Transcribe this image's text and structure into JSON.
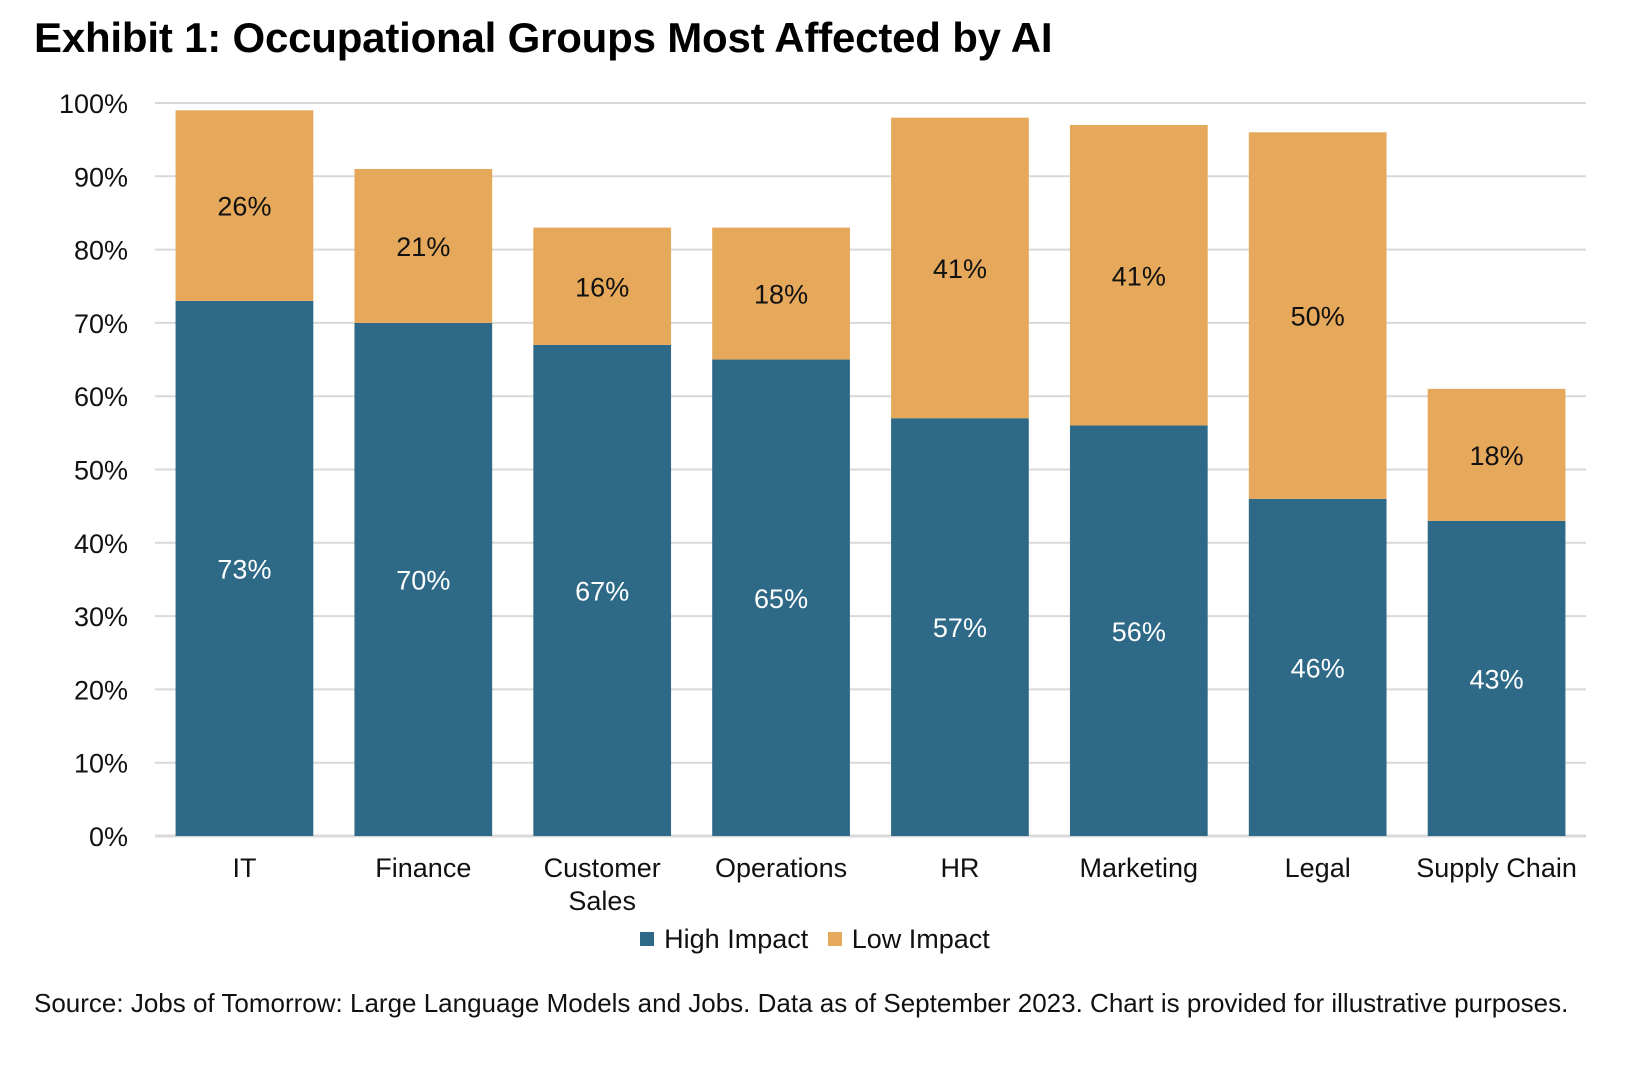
{
  "title": "Exhibit 1: Occupational Groups Most Affected by AI",
  "colors": {
    "high": "#2E6A87",
    "low": "#E6A85A",
    "grid": "#D9D9D9"
  },
  "legend": {
    "high_label": "High Impact",
    "low_label": "Low Impact"
  },
  "source": "Source: Jobs of Tomorrow: Large Language Models and Jobs. Data as of September 2023. Chart is provided for illustrative purposes.",
  "chart_data": {
    "type": "bar",
    "stacked": true,
    "title": "Exhibit 1: Occupational Groups Most Affected by AI",
    "xlabel": "",
    "ylabel": "",
    "categories": [
      [
        "IT"
      ],
      [
        "Finance"
      ],
      [
        "Customer",
        "Sales"
      ],
      [
        "Operations"
      ],
      [
        "HR"
      ],
      [
        "Marketing"
      ],
      [
        "Legal"
      ],
      [
        "Supply Chain"
      ]
    ],
    "series": [
      {
        "name": "High Impact",
        "values": [
          73,
          70,
          67,
          65,
          57,
          56,
          46,
          43
        ],
        "labels": [
          "73%",
          "70%",
          "67%",
          "65%",
          "57%",
          "56%",
          "46%",
          "43%"
        ]
      },
      {
        "name": "Low Impact",
        "values": [
          26,
          21,
          16,
          18,
          41,
          41,
          50,
          18
        ],
        "labels": [
          "26%",
          "21%",
          "16%",
          "18%",
          "41%",
          "41%",
          "50%",
          "18%"
        ]
      }
    ],
    "ylim": [
      0,
      100
    ],
    "yticks": [
      "0%",
      "10%",
      "20%",
      "30%",
      "40%",
      "50%",
      "60%",
      "70%",
      "80%",
      "90%",
      "100%"
    ],
    "grid": true,
    "legend_position": "bottom"
  }
}
